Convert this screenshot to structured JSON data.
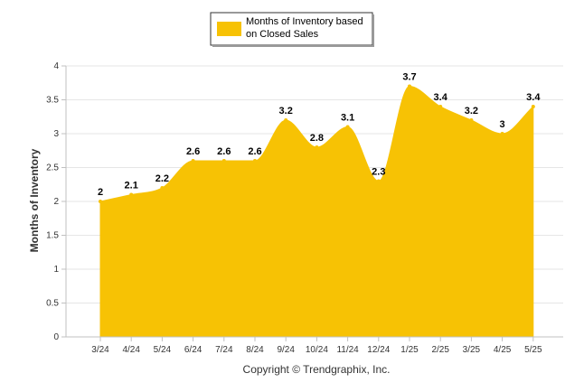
{
  "chart_data": {
    "type": "area",
    "categories": [
      "3/24",
      "4/24",
      "5/24",
      "6/24",
      "7/24",
      "8/24",
      "9/24",
      "10/24",
      "11/24",
      "12/24",
      "1/25",
      "2/25",
      "3/25",
      "4/25",
      "5/25"
    ],
    "series": [
      {
        "name": "Months of Inventory based on Closed Sales",
        "values": [
          2,
          2.1,
          2.2,
          2.6,
          2.6,
          2.6,
          3.2,
          2.8,
          3.1,
          2.3,
          3.7,
          3.4,
          3.2,
          3,
          3.4
        ],
        "data_labels": [
          "2",
          "2.1",
          "2.2",
          "2.6",
          "2.6",
          "2.6",
          "3.2",
          "2.8",
          "3.1",
          "2.3",
          "3.7",
          "3.4",
          "3.2",
          "3",
          "3.4"
        ],
        "color": "#F7C204"
      }
    ],
    "ylabel": "Months of Inventory",
    "xlabel": "",
    "ylim": [
      0,
      4
    ],
    "yticks": [
      "0",
      "0.5",
      "1",
      "1.5",
      "2",
      "2.5",
      "3",
      "3.5",
      "4"
    ],
    "grid": true,
    "legend_placement": "top-center"
  },
  "legend": {
    "line1": "Months of Inventory based",
    "line2": "on Closed Sales"
  },
  "footer": {
    "copyright": "Copyright © Trendgraphix, Inc."
  },
  "colors": {
    "area": "#F7C204",
    "grid": "#E6E6E6",
    "axis": "#C0C0C0"
  }
}
